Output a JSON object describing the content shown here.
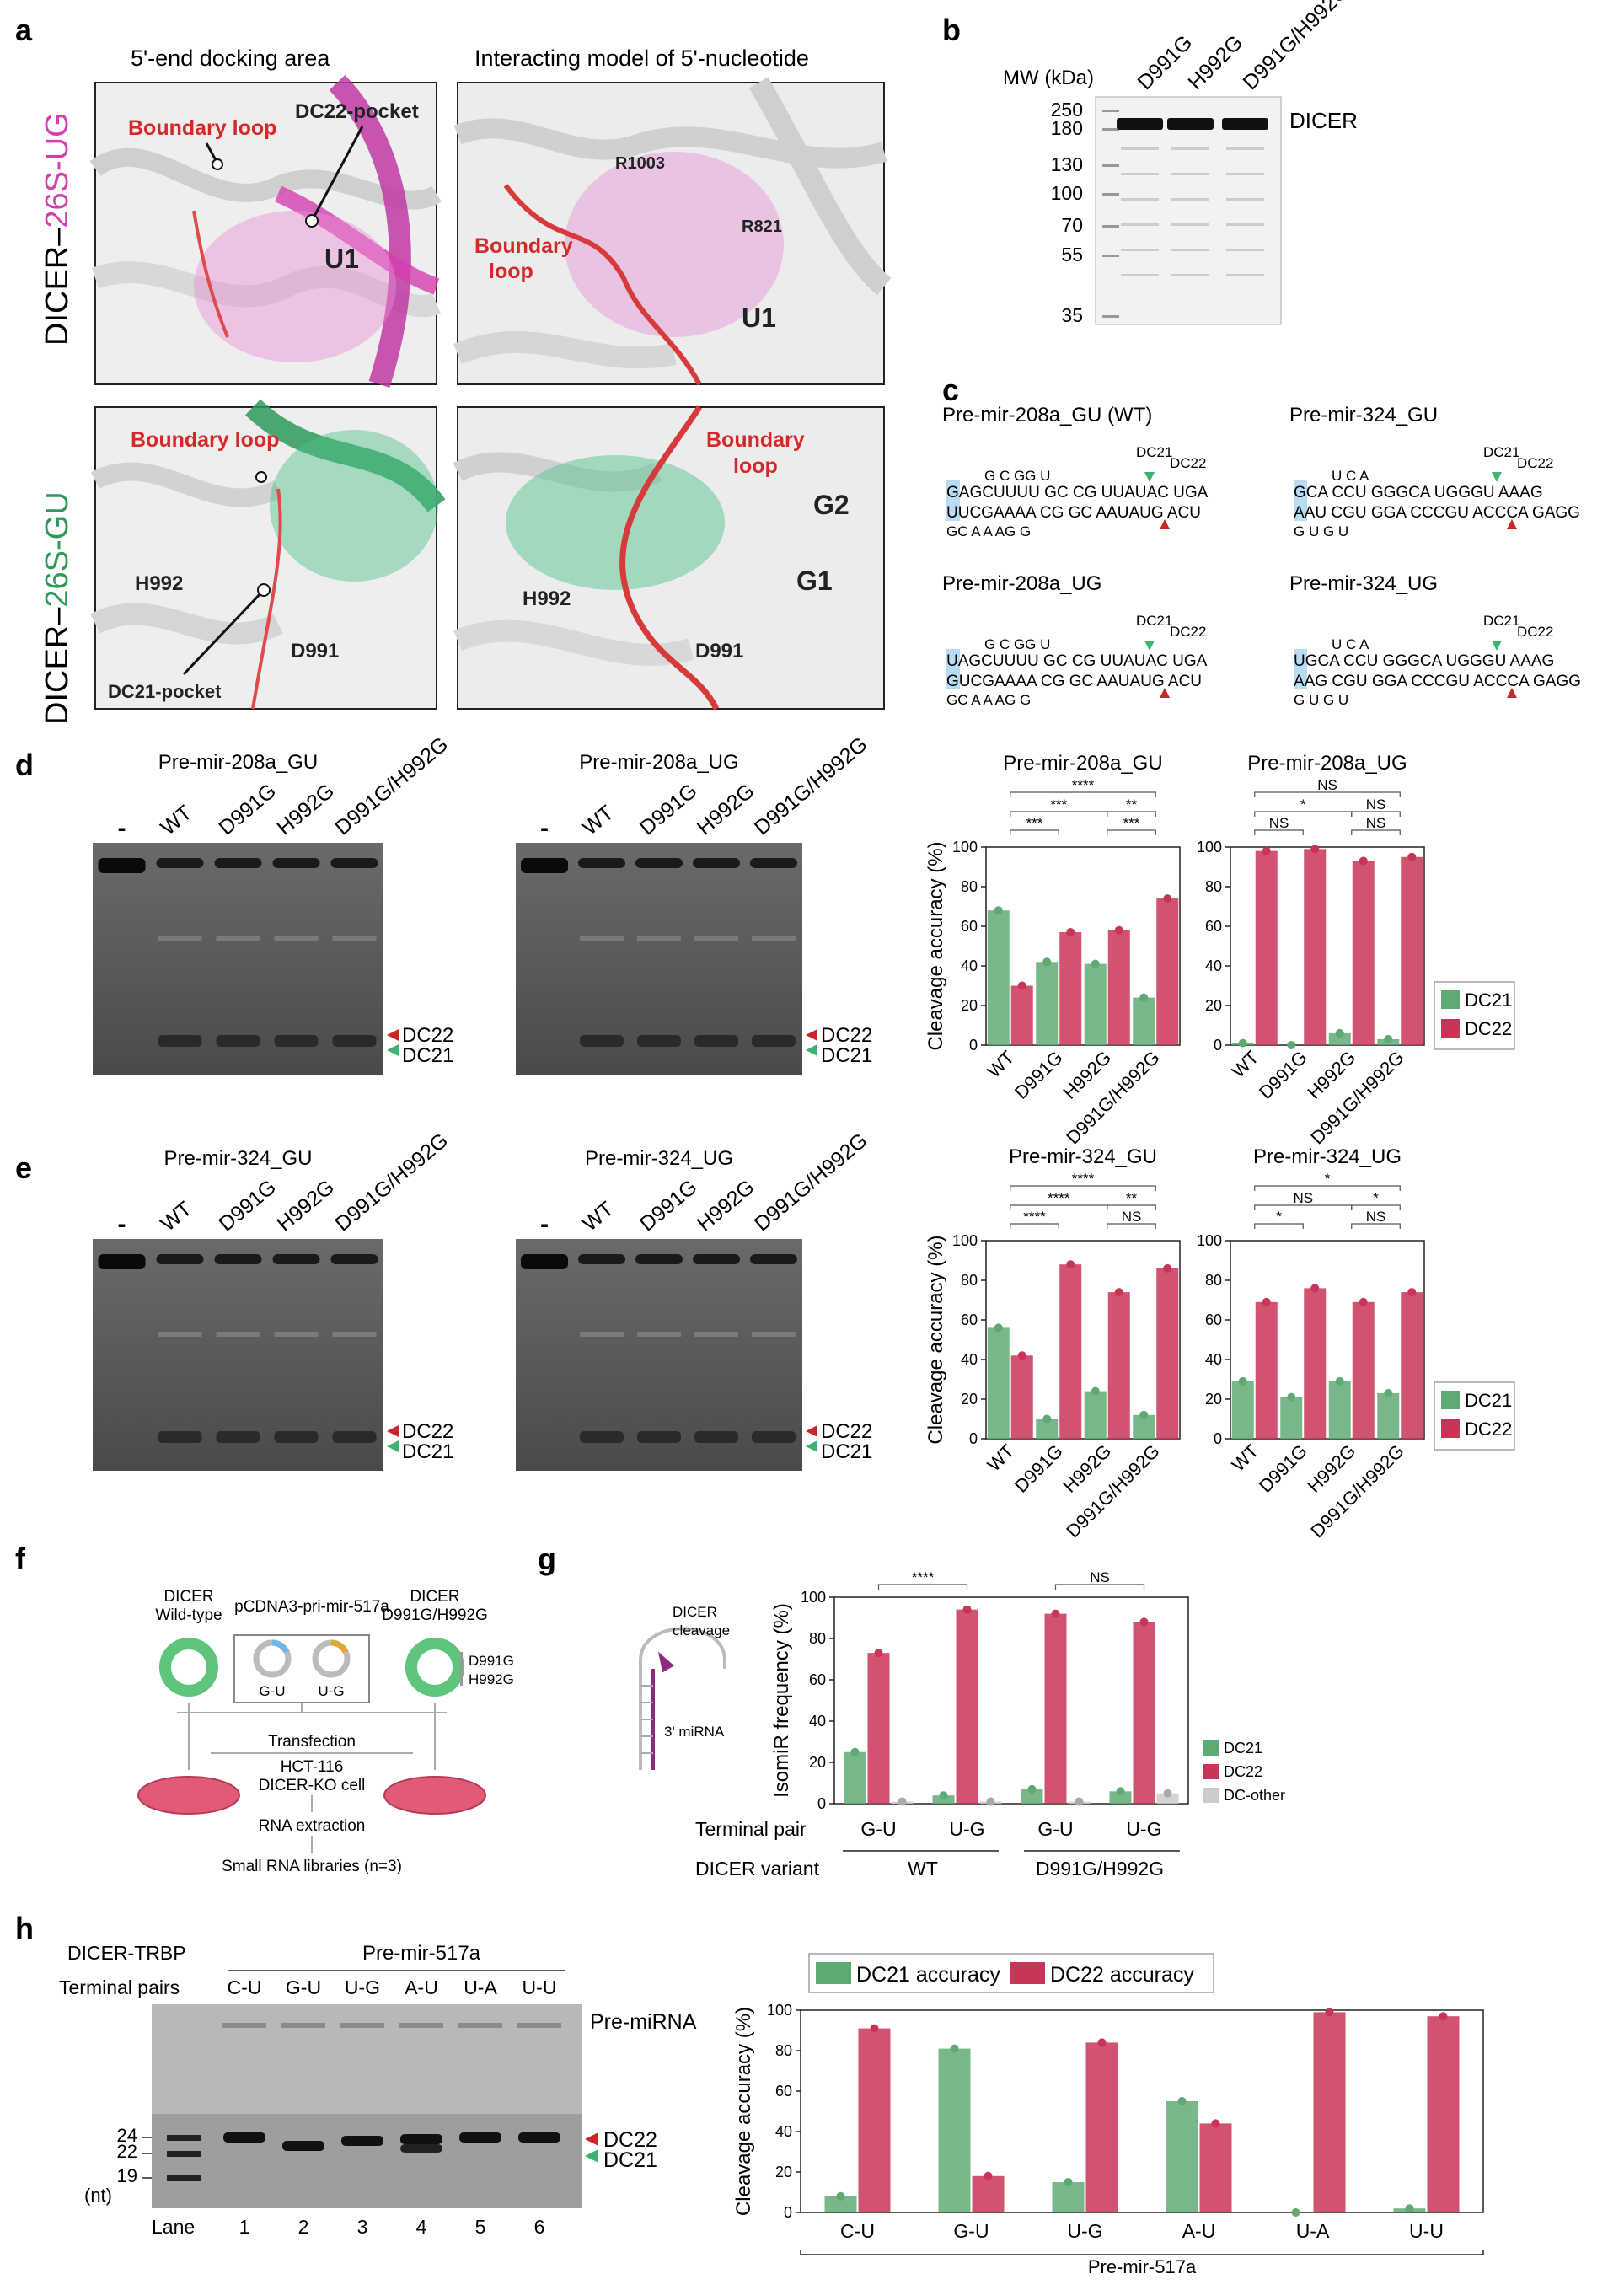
{
  "panels": {
    "a": "a",
    "b": "b",
    "c": "c",
    "d": "d",
    "e": "e",
    "f": "f",
    "g": "g",
    "h": "h"
  },
  "panel_a": {
    "col1_title": "5'-end docking area",
    "col2_title": "Interacting model of 5'-nucleotide",
    "row1_label_prefix": "DICER–",
    "row1_label_suffix": "26S-UG",
    "row2_label_prefix": "DICER–",
    "row2_label_suffix": "26S-GU",
    "boundary_loop": "Boundary loop",
    "boundary_word": "Boundary",
    "loop_word": "loop",
    "dc22_pocket": "DC22-pocket",
    "dc21_pocket": "DC21-pocket",
    "u1": "U1",
    "r1003": "R1003",
    "r821": "R821",
    "h992": "H992",
    "d991": "D991",
    "g1": "G1",
    "g2": "G2",
    "colors": {
      "pink": "#d43fb0",
      "green": "#2e9a5a",
      "red": "#d62828"
    }
  },
  "panel_b": {
    "mw_label": "MW (kDa)",
    "markers": [
      "250",
      "180",
      "130",
      "100",
      "70",
      "55",
      "35"
    ],
    "lanes": [
      "D991G",
      "H992G",
      "D991G/H992G"
    ],
    "band_label": "DICER"
  },
  "panel_c": {
    "constructs": [
      {
        "title": "Pre-mir-208a_GU (WT)",
        "top": "GAGCUUUU  GC CG UUAUAC UGA",
        "topbulge": "G    C   GG           U",
        "bot": "UUCGAAAA CG GC AAUAUG ACU",
        "botbulge": "GC     A   A   AG         G"
      },
      {
        "title": "Pre-mir-324_GU",
        "top": "GCA  CCU  GGGCA UGGGU AAAG",
        "topbulge": "U   C    A         ",
        "bot": "AAU CGU  GGA CCCGU ACCCA  GAGG",
        "botbulge": "  G U   G        U"
      },
      {
        "title": "Pre-mir-208a_UG",
        "top": "UAGCUUUU  GC CG UUAUAC UGA",
        "topbulge": "G    C   GG           U",
        "bot": "GUCGAAAA CG GC AAUAUG ACU",
        "botbulge": "GC     A   A   AG         G"
      },
      {
        "title": "Pre-mir-324_UG",
        "top": "UGCA  CCU  GGGCA UGGGU AAAG",
        "topbulge": "U   C    A         ",
        "bot": "AAG CGU  GGA CCCGU ACCCA  GAGG",
        "botbulge": "  G U   G        U"
      }
    ],
    "dc21": "DC21",
    "dc22": "DC22"
  },
  "gels_d": [
    {
      "title": "Pre-mir-208a_GU",
      "lanes": [
        "-",
        "WT",
        "D991G",
        "H992G",
        "D991G/H992G"
      ]
    },
    {
      "title": "Pre-mir-208a_UG",
      "lanes": [
        "-",
        "WT",
        "D991G",
        "H992G",
        "D991G/H992G"
      ]
    }
  ],
  "gels_e": [
    {
      "title": "Pre-mir-324_GU",
      "lanes": [
        "-",
        "WT",
        "D991G",
        "H992G",
        "D991G/H992G"
      ]
    },
    {
      "title": "Pre-mir-324_UG",
      "lanes": [
        "-",
        "WT",
        "D991G",
        "H992G",
        "D991G/H992G"
      ]
    }
  ],
  "gel_band_labels": {
    "dc22": "DC22",
    "dc21": "DC21"
  },
  "chart_data": [
    {
      "type": "bar",
      "title": "Pre-mir-208a_GU",
      "ylabel": "Cleavage accuracy (%)",
      "ylim": [
        0,
        100
      ],
      "yticks": [
        0,
        20,
        40,
        60,
        80,
        100
      ],
      "categories": [
        "WT",
        "D991G",
        "H992G",
        "D991G/H992G"
      ],
      "series": [
        {
          "name": "DC21",
          "values": [
            68,
            42,
            41,
            24
          ]
        },
        {
          "name": "DC22",
          "values": [
            30,
            57,
            58,
            74
          ]
        }
      ],
      "significance": [
        "****",
        "***",
        "**",
        "***",
        "***"
      ]
    },
    {
      "type": "bar",
      "title": "Pre-mir-208a_UG",
      "ylabel": "",
      "ylim": [
        0,
        100
      ],
      "yticks": [
        0,
        20,
        40,
        60,
        80,
        100
      ],
      "categories": [
        "WT",
        "D991G",
        "H992G",
        "D991G/H992G"
      ],
      "series": [
        {
          "name": "DC21",
          "values": [
            1,
            0,
            6,
            3
          ]
        },
        {
          "name": "DC22",
          "values": [
            98,
            99,
            93,
            95
          ]
        }
      ],
      "significance": [
        "NS",
        "*",
        "NS",
        "NS",
        "NS"
      ],
      "legend": [
        "DC21",
        "DC22"
      ]
    },
    {
      "type": "bar",
      "title": "Pre-mir-324_GU",
      "ylabel": "Cleavage accuracy (%)",
      "ylim": [
        0,
        100
      ],
      "yticks": [
        0,
        20,
        40,
        60,
        80,
        100
      ],
      "categories": [
        "WT",
        "D991G",
        "H992G",
        "D991G/H992G"
      ],
      "series": [
        {
          "name": "DC21",
          "values": [
            56,
            10,
            24,
            12
          ]
        },
        {
          "name": "DC22",
          "values": [
            42,
            88,
            74,
            86
          ]
        }
      ],
      "significance": [
        "****",
        "****",
        "**",
        "****",
        "NS"
      ]
    },
    {
      "type": "bar",
      "title": "Pre-mir-324_UG",
      "ylabel": "",
      "ylim": [
        0,
        100
      ],
      "yticks": [
        0,
        20,
        40,
        60,
        80,
        100
      ],
      "categories": [
        "WT",
        "D991G",
        "H992G",
        "D991G/H992G"
      ],
      "series": [
        {
          "name": "DC21",
          "values": [
            29,
            21,
            29,
            23
          ]
        },
        {
          "name": "DC22",
          "values": [
            69,
            76,
            69,
            74
          ]
        }
      ],
      "significance": [
        "*",
        "NS",
        "*",
        "*",
        "NS"
      ],
      "legend": [
        "DC21",
        "DC22"
      ]
    },
    {
      "type": "bar",
      "title": "",
      "ylabel": "IsomiR frequency (%)",
      "ylim": [
        0,
        100
      ],
      "yticks": [
        0,
        20,
        40,
        60,
        80,
        100
      ],
      "categories": [
        "G-U",
        "U-G",
        "G-U",
        "U-G"
      ],
      "series": [
        {
          "name": "DC21",
          "values": [
            25,
            4,
            7,
            6
          ]
        },
        {
          "name": "DC22",
          "values": [
            73,
            94,
            92,
            88
          ]
        },
        {
          "name": "DC-other",
          "values": [
            1,
            1,
            1,
            5
          ]
        }
      ],
      "significance": [
        "****",
        "NS"
      ],
      "row_labels": {
        "terminal_pair": "Terminal pair",
        "dicer_variant": "DICER variant",
        "wt": "WT",
        "mut": "D991G/H992G"
      },
      "legend": [
        "DC21",
        "DC22",
        "DC-other"
      ]
    },
    {
      "type": "bar",
      "title": "",
      "ylabel": "Cleavage accuracy (%)",
      "ylim": [
        0,
        100
      ],
      "yticks": [
        0,
        20,
        40,
        60,
        80,
        100
      ],
      "categories": [
        "C-U",
        "G-U",
        "U-G",
        "A-U",
        "U-A",
        "U-U"
      ],
      "series": [
        {
          "name": "DC21 accuracy",
          "values": [
            8,
            81,
            15,
            55,
            0,
            2
          ]
        },
        {
          "name": "DC22 accuracy",
          "values": [
            91,
            18,
            84,
            44,
            99,
            97
          ]
        }
      ],
      "xlabel": "Pre-mir-517a",
      "legend": [
        "DC21 accuracy",
        "DC22 accuracy"
      ]
    }
  ],
  "panel_f": {
    "dicer_wt_1": "DICER",
    "dicer_wt_2": "Wild-type",
    "plasmid": "pCDNA3-pri-mir-517a",
    "dicer_mut_1": "DICER",
    "dicer_mut_2": "D991G/H992G",
    "gu": "G-U",
    "ug": "U-G",
    "mut1": "D991G",
    "mut2": "H992G",
    "transfection": "Transfection",
    "cell_1": "HCT-116",
    "cell_2": "DICER-KO cell",
    "rna": "RNA extraction",
    "libs": "Small RNA libraries (n=3)"
  },
  "panel_g_inset": {
    "dicer_1": "DICER",
    "dicer_2": "cleavage",
    "mirna": "3' miRNA"
  },
  "panel_h": {
    "enzyme": "DICER-TRBP",
    "construct": "Pre-mir-517a",
    "terminal_pairs_label": "Terminal pairs",
    "pairs": [
      "C-U",
      "G-U",
      "U-G",
      "A-U",
      "U-A",
      "U-U"
    ],
    "premirna": "Pre-miRNA",
    "markers": [
      "24",
      "22",
      "19"
    ],
    "nt": "(nt)",
    "lane": "Lane",
    "lane_numbers": [
      "1",
      "2",
      "3",
      "4",
      "5",
      "6"
    ],
    "dc22": "DC22",
    "dc21": "DC21"
  },
  "colors": {
    "dc21": "#5faa74",
    "dc22": "#c93556",
    "dc_other": "#cccccc",
    "dc21_arrow": "#3cb371",
    "dc22_arrow": "#c62828"
  }
}
